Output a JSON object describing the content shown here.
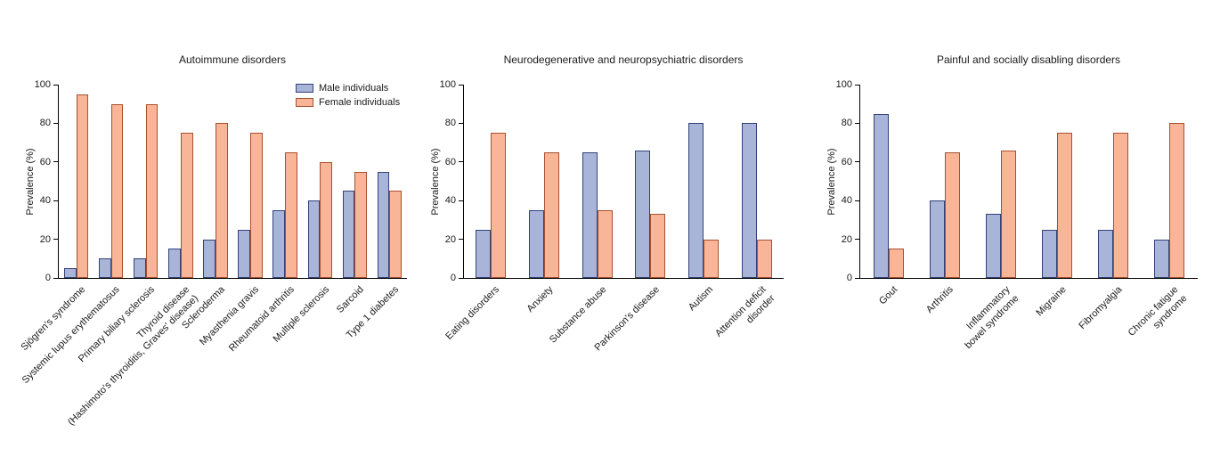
{
  "figure": {
    "y_axis_label": "Prevalence (%)",
    "colors": {
      "male_fill": "#a8b5d8",
      "male_border": "#33427a",
      "female_fill": "#f8b597",
      "female_border": "#a8502f",
      "axis": "#000000",
      "text": "#1a1a1a"
    },
    "legend": [
      {
        "label": "Male individuals",
        "color": "#a8b5d8",
        "border": "#33427a"
      },
      {
        "label": "Female individuals",
        "color": "#f8b597",
        "border": "#a8502f"
      }
    ]
  },
  "chart_data": [
    {
      "type": "bar",
      "title": "Autoimmune disorders",
      "ylabel": "Prevalence (%)",
      "ylim": [
        0,
        100
      ],
      "yticks": [
        0,
        20,
        40,
        60,
        80,
        100
      ],
      "grid": false,
      "legend_position": "top-right",
      "categories": [
        "Sjögren's syndrome",
        "Systemic lupus erythematosus",
        "Primary biliary sclerosis",
        "Thyroid disease\n(Hashimoto's thyroiditis, Graves' disease)",
        "Scleroderma",
        "Myasthenia gravis",
        "Rheumatoid arthritis",
        "Multiple sclerosis",
        "Sarcoid",
        "Type 1 diabetes"
      ],
      "series": [
        {
          "name": "Male individuals",
          "values": [
            5,
            10,
            10,
            15,
            20,
            25,
            35,
            40,
            45,
            55
          ]
        },
        {
          "name": "Female individuals",
          "values": [
            95,
            90,
            90,
            75,
            80,
            75,
            65,
            60,
            55,
            45
          ]
        }
      ]
    },
    {
      "type": "bar",
      "title": "Neurodegenerative and neuropsychiatric disorders",
      "ylabel": "Prevalence (%)",
      "ylim": [
        0,
        100
      ],
      "yticks": [
        0,
        20,
        40,
        60,
        80,
        100
      ],
      "grid": false,
      "legend_position": "none",
      "categories": [
        "Eating disorders",
        "Anxiety",
        "Substance abuse",
        "Parkinson's disease",
        "Autism",
        "Attention deficit\ndisorder"
      ],
      "series": [
        {
          "name": "Male individuals",
          "values": [
            25,
            35,
            65,
            66,
            80,
            80
          ]
        },
        {
          "name": "Female individuals",
          "values": [
            75,
            65,
            35,
            33,
            20,
            20
          ]
        }
      ]
    },
    {
      "type": "bar",
      "title": "Painful and socially disabling disorders",
      "ylabel": "Prevalence (%)",
      "ylim": [
        0,
        100
      ],
      "yticks": [
        0,
        20,
        40,
        60,
        80,
        100
      ],
      "grid": false,
      "legend_position": "none",
      "categories": [
        "Gout",
        "Arthritis",
        "Inflammatory\nbowel syndrome",
        "Migraine",
        "Fibromyalgia",
        "Chronic fatigue\nsyndrome"
      ],
      "series": [
        {
          "name": "Male individuals",
          "values": [
            85,
            40,
            33,
            25,
            25,
            20
          ]
        },
        {
          "name": "Female individuals",
          "values": [
            15,
            65,
            66,
            75,
            75,
            80
          ]
        }
      ]
    }
  ]
}
